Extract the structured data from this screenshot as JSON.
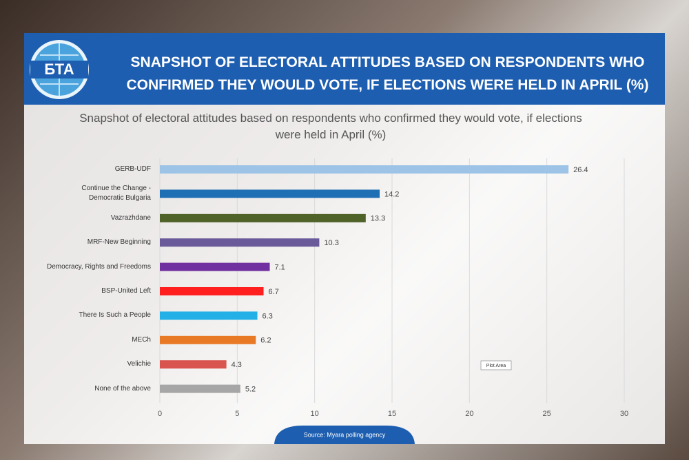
{
  "header": {
    "logo": "БТА",
    "title": "SNAPSHOT OF ELECTORAL ATTITUDES BASED ON RESPONDENTS WHO CONFIRMED THEY WOULD VOTE, IF ELECTIONS WERE HELD IN APRIL (%)"
  },
  "chart_data": {
    "type": "bar",
    "orientation": "horizontal",
    "title": "Snapshot of electoral attitudes based on respondents who confirmed they would vote, if elections were held in April (%)",
    "categories": [
      "GERB-UDF",
      "Continue the Change -\nDemocratic Bulgaria",
      "Vazrazhdane",
      "MRF-New Beginning",
      "Democracy, Rights and Freedoms",
      "BSP-United Left",
      "There Is Such a People",
      "MECh",
      "Velichie",
      "None of the above"
    ],
    "values": [
      26.4,
      14.2,
      13.3,
      10.3,
      7.1,
      6.7,
      6.3,
      6.2,
      4.3,
      5.2
    ],
    "colors": [
      "#9dc3e6",
      "#1f6fb5",
      "#4f6228",
      "#6a5a9a",
      "#7030a0",
      "#ff1f1f",
      "#23b0e6",
      "#e87a25",
      "#d9534f",
      "#a6a6a6"
    ],
    "xlim": [
      0,
      30
    ],
    "xticks": [
      0,
      5,
      10,
      15,
      20,
      25,
      30
    ],
    "grid": true,
    "annotation": "Plot Area"
  },
  "footer": {
    "source": "Source: Myara polling agency"
  }
}
